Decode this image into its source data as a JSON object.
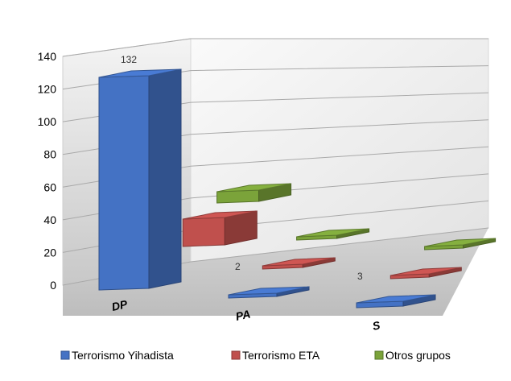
{
  "chart_data": {
    "type": "bar",
    "categories": [
      "DP",
      "PA",
      "S"
    ],
    "series": [
      {
        "name": "Terrorismo Yihadista",
        "values": [
          132,
          2,
          3
        ],
        "color": "#4472C4"
      },
      {
        "name": "Terrorismo ETA",
        "values": [
          0,
          0,
          0
        ],
        "color": "#C0504D"
      },
      {
        "name": "Otros grupos",
        "values": [
          0,
          0,
          0
        ],
        "color": "#7BA33A"
      }
    ],
    "data_labels": [
      "132",
      "2",
      "3"
    ],
    "y_ticks": [
      "0",
      "20",
      "40",
      "60",
      "80",
      "100",
      "120",
      "140"
    ],
    "ylim": [
      0,
      140
    ],
    "grid": true,
    "legend_position": "bottom",
    "style": "3d-clustered"
  }
}
